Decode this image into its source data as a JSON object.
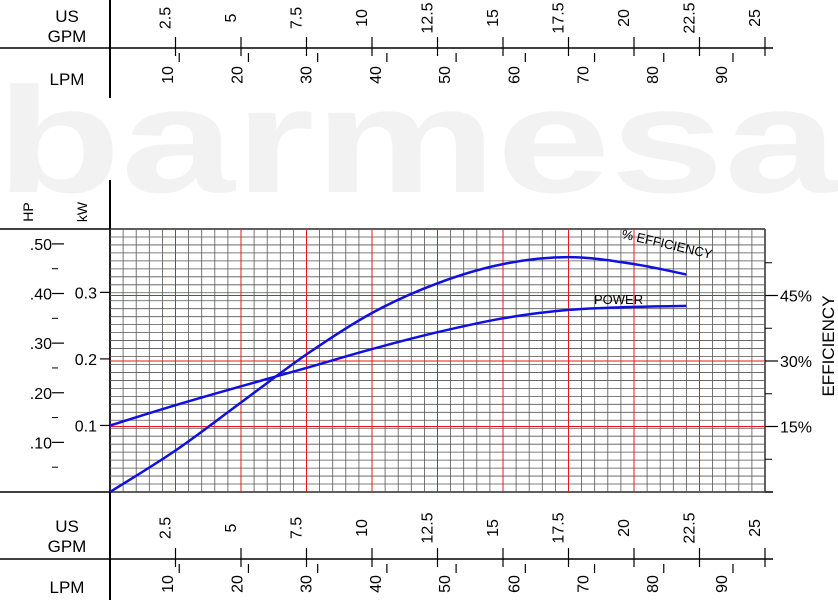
{
  "colors": {
    "grid_minor": "#555555",
    "grid_major": "#e8191e",
    "curve": "#1010e0",
    "text": "#000000",
    "watermark": "#f1f1f1"
  },
  "watermark": "barmesa",
  "labels": {
    "us_gpm": [
      "US",
      "GPM"
    ],
    "lpm": "LPM",
    "hp": "HP",
    "kw": "kW",
    "efficiency_axis": "EFFICIENCY",
    "efficiency_curve": "% EFFICIENCY",
    "power_curve": "POWER"
  },
  "chart_data": {
    "type": "line",
    "x_gpm_range": [
      0,
      25
    ],
    "gpm_ticks": [
      "2.5",
      "5",
      "7.5",
      "10",
      "12.5",
      "15",
      "17.5",
      "20",
      "22.5",
      "25"
    ],
    "gpm_tick_values": [
      2.5,
      5,
      7.5,
      10,
      12.5,
      15,
      17.5,
      20,
      22.5,
      25
    ],
    "lpm_ticks": [
      "10",
      "20",
      "30",
      "40",
      "50",
      "60",
      "70",
      "80",
      "90"
    ],
    "lpm_tick_values": [
      10,
      20,
      30,
      40,
      50,
      60,
      70,
      80,
      90
    ],
    "hp_range": [
      0,
      0.53
    ],
    "hp_ticks": [
      ".10",
      ".20",
      ".30",
      ".40",
      ".50"
    ],
    "hp_tick_values": [
      0.1,
      0.2,
      0.3,
      0.4,
      0.5
    ],
    "kw_ticks": [
      "0.1",
      "0.2",
      "0.3"
    ],
    "kw_tick_values": [
      0.1,
      0.2,
      0.3
    ],
    "efficiency_ticks": [
      "15%",
      "30%",
      "45%"
    ],
    "efficiency_tick_values": [
      15,
      30,
      45
    ],
    "grid": true,
    "series": [
      {
        "name": "POWER",
        "unit": "HP",
        "points": [
          [
            0,
            0.134
          ],
          [
            2.5,
            0.175
          ],
          [
            5,
            0.213
          ],
          [
            7.5,
            0.25
          ],
          [
            10,
            0.288
          ],
          [
            12.5,
            0.322
          ],
          [
            15,
            0.35
          ],
          [
            17.5,
            0.367
          ],
          [
            20,
            0.373
          ],
          [
            22,
            0.375
          ]
        ]
      },
      {
        "name": "% EFFICIENCY",
        "unit": "%",
        "points": [
          [
            0,
            0
          ],
          [
            2.5,
            9.5
          ],
          [
            5,
            20.5
          ],
          [
            7.5,
            31.5
          ],
          [
            10,
            41
          ],
          [
            12.5,
            47.8
          ],
          [
            15,
            52.2
          ],
          [
            17.5,
            53.8
          ],
          [
            20,
            52.2
          ],
          [
            22,
            49.8
          ]
        ]
      }
    ]
  }
}
